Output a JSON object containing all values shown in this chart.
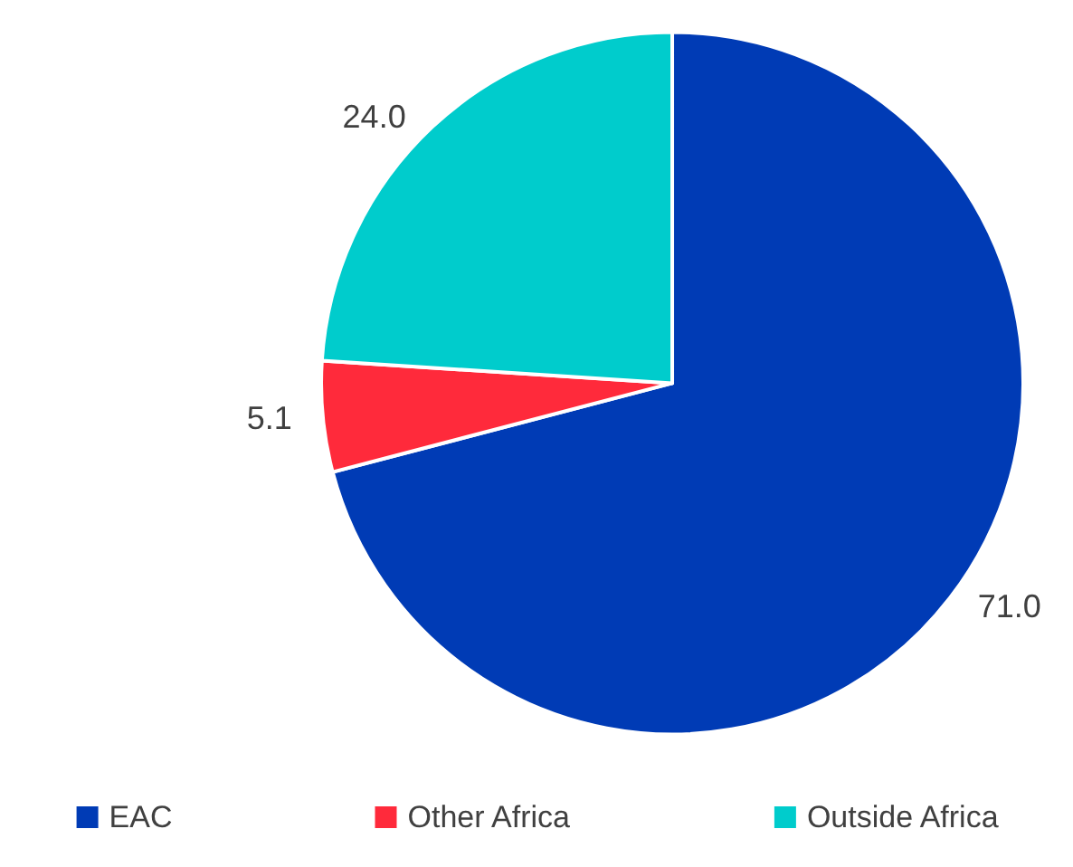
{
  "chart_data": {
    "type": "pie",
    "categories": [
      "EAC",
      "Other Africa",
      "Outside Africa"
    ],
    "values": [
      71.0,
      5.1,
      24.0
    ],
    "value_labels": [
      "71.0",
      "5.1",
      "24.0"
    ],
    "colors": [
      "#003bb5",
      "#ff2a3b",
      "#00cccc"
    ],
    "legend": "bottom"
  }
}
